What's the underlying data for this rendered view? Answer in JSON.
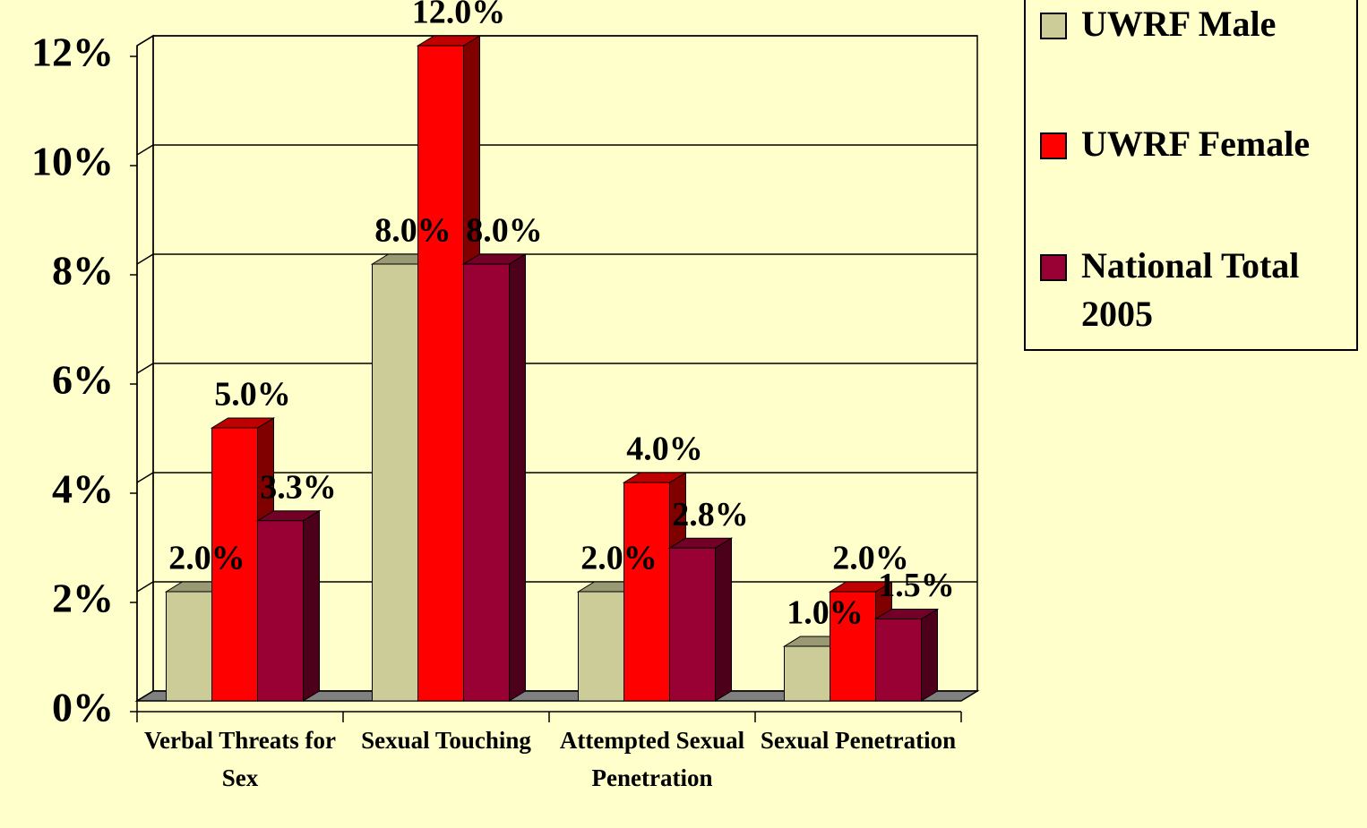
{
  "chart_data": {
    "type": "bar3d",
    "categories": [
      "Verbal Threats for Sex",
      "Sexual Touching",
      "Attempted Sexual Penetration",
      "Sexual Penetration"
    ],
    "series": [
      {
        "name": "UWRF Male",
        "color": "#cccc99",
        "values": [
          2.0,
          8.0,
          2.0,
          1.0
        ],
        "value_labels": [
          "2.0%",
          "8.0%",
          "2.0%",
          "1.0%"
        ]
      },
      {
        "name": "UWRF Female",
        "color": "#ff0000",
        "values": [
          5.0,
          12.0,
          4.0,
          2.0
        ],
        "value_labels": [
          "5.0%",
          "12.0%",
          "4.0%",
          "2.0%"
        ]
      },
      {
        "name": "National Total 2005",
        "color": "#990033",
        "values": [
          3.3,
          8.0,
          2.8,
          1.5
        ],
        "value_labels": [
          "3.3%",
          "8.0%",
          "2.8%",
          "1.5%"
        ]
      }
    ],
    "ylim": [
      0,
      12
    ],
    "yticks": [
      {
        "value": 0,
        "label": "0%"
      },
      {
        "value": 2,
        "label": "2%"
      },
      {
        "value": 4,
        "label": "4%"
      },
      {
        "value": 6,
        "label": "6%"
      },
      {
        "value": 8,
        "label": "8%"
      },
      {
        "value": 10,
        "label": "10%"
      },
      {
        "value": 12,
        "label": "12%"
      }
    ],
    "grid": true,
    "legend": "top-right"
  }
}
